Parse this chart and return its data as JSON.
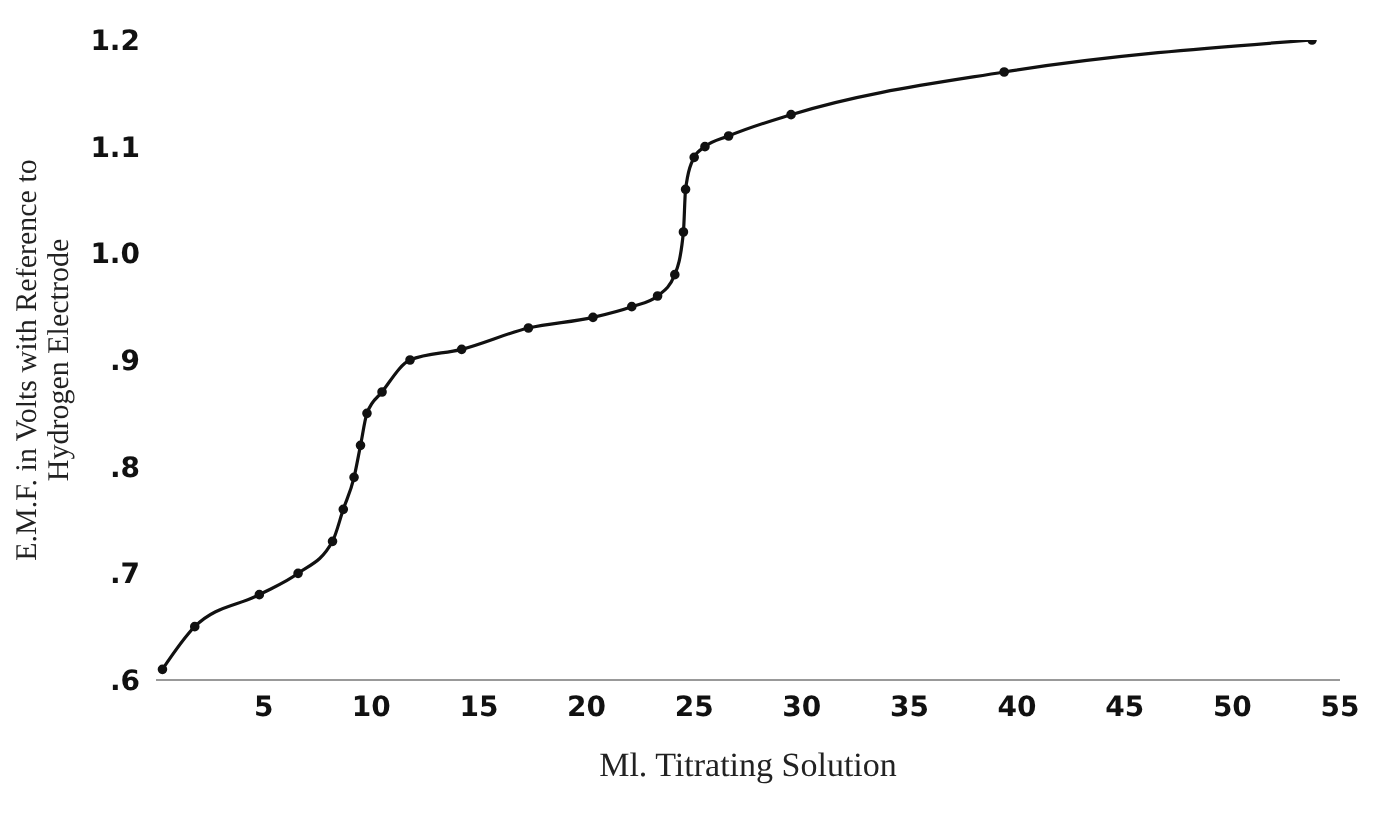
{
  "chart_data": {
    "type": "line",
    "xlabel": "Ml. Titrating Solution",
    "ylabel": "E.M.F. in Volts with Reference to\nHydrogen Electrode",
    "x": [
      0.3,
      1.8,
      4.8,
      6.6,
      8.2,
      8.7,
      9.2,
      9.5,
      9.8,
      10.5,
      11.8,
      14.2,
      17.3,
      20.3,
      22.1,
      23.3,
      24.1,
      24.5,
      24.6,
      25.0,
      25.5,
      26.6,
      29.5,
      39.4,
      53.7
    ],
    "series": [
      {
        "color": "#111111",
        "values": [
          0.61,
          0.65,
          0.68,
          0.7,
          0.73,
          0.76,
          0.79,
          0.82,
          0.85,
          0.87,
          0.9,
          0.91,
          0.93,
          0.94,
          0.95,
          0.96,
          0.98,
          1.02,
          1.06,
          1.09,
          1.1,
          1.11,
          1.13,
          1.17,
          1.2
        ]
      }
    ],
    "xlim": [
      0,
      55
    ],
    "xticks": [
      5,
      10,
      15,
      20,
      25,
      30,
      35,
      40,
      45,
      50,
      55
    ],
    "ylim": [
      0.6,
      1.2
    ],
    "yticks": [
      {
        "value": 0.6,
        "label": ".6"
      },
      {
        "value": 0.7,
        "label": ".7"
      },
      {
        "value": 0.8,
        "label": ".8"
      },
      {
        "value": 0.9,
        "label": ".9"
      },
      {
        "value": 1.0,
        "label": "1.0"
      },
      1.1,
      1.2
    ],
    "grid": false,
    "marker": "circle",
    "line_style": "solid"
  }
}
